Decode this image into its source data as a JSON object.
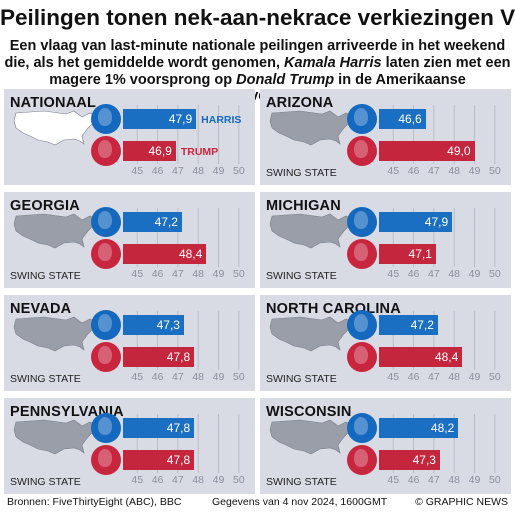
{
  "title": "Peilingen tonen nek-aan-nekrace verkiezingen VS",
  "subtitle": {
    "part1": "Een vlaag van last-minute nationale peilingen arriveerde in het weekend die, als het gemiddelde wordt genomen, ",
    "harris": "Kamala Harris",
    "part2": " laten zien met een magere 1% voorsprong op ",
    "trump": "Donald Trump",
    "part3": " in de Amerikaanse presidentsverkiezingen"
  },
  "legend": {
    "harris": "HARRIS",
    "trump": "TRUMP"
  },
  "swing_label": "SWING STATE",
  "footer": {
    "source": "Bronnen: FiveThirtyEight (ABC), BBC",
    "date": "Gegevens van 4 nov 2024, 1600GMT",
    "credit": "© GRAPHIC NEWS"
  },
  "colors": {
    "harris": "#1a6fc2",
    "trump": "#c4273d",
    "panel": "#d9dbe4"
  },
  "chart_data": {
    "type": "bar",
    "xlim": [
      44.3,
      50.5
    ],
    "ticks": [
      45,
      46,
      47,
      48,
      49,
      50
    ],
    "tick_labels": [
      "45",
      "46",
      "47",
      "48",
      "49",
      "50"
    ],
    "panels": [
      {
        "name": "NATIONAAL",
        "swing": false,
        "harris": 47.9,
        "trump": 46.9,
        "harris_label": "47,9",
        "trump_label": "46,9"
      },
      {
        "name": "ARIZONA",
        "swing": true,
        "harris": 46.6,
        "trump": 49.0,
        "harris_label": "46,6",
        "trump_label": "49,0"
      },
      {
        "name": "GEORGIA",
        "swing": true,
        "harris": 47.2,
        "trump": 48.4,
        "harris_label": "47,2",
        "trump_label": "48,4"
      },
      {
        "name": "MICHIGAN",
        "swing": true,
        "harris": 47.9,
        "trump": 47.1,
        "harris_label": "47,9",
        "trump_label": "47,1"
      },
      {
        "name": "NEVADA",
        "swing": true,
        "harris": 47.3,
        "trump": 47.8,
        "harris_label": "47,3",
        "trump_label": "47,8"
      },
      {
        "name": "NORTH CAROLINA",
        "swing": true,
        "harris": 47.2,
        "trump": 48.4,
        "harris_label": "47,2",
        "trump_label": "48,4"
      },
      {
        "name": "PENNSYLVANIA",
        "swing": true,
        "harris": 47.8,
        "trump": 47.8,
        "harris_label": "47,8",
        "trump_label": "47,8"
      },
      {
        "name": "WISCONSIN",
        "swing": true,
        "harris": 48.2,
        "trump": 47.3,
        "harris_label": "48,2",
        "trump_label": "47,3"
      }
    ]
  }
}
